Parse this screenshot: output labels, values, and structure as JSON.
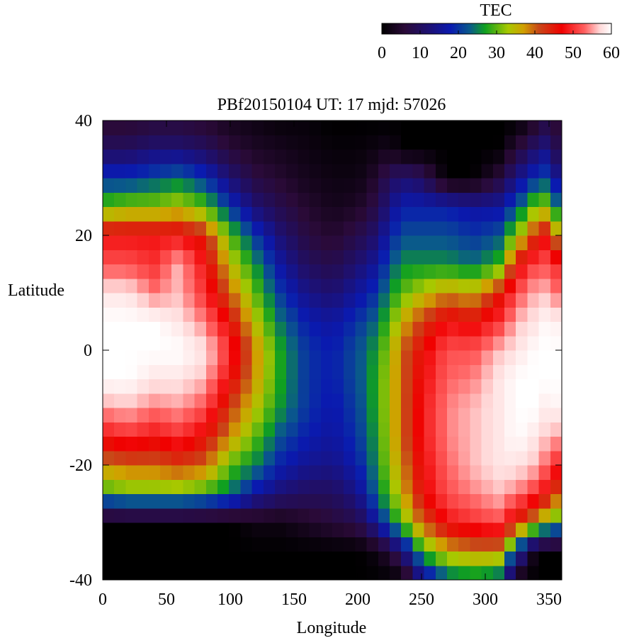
{
  "chart_data": {
    "type": "heatmap",
    "title": "PBf20150104  UT: 17  mjd: 57026",
    "xlabel": "Longitude",
    "ylabel": "Latitude",
    "xlim": [
      0,
      360
    ],
    "ylim": [
      -40,
      40
    ],
    "xticks": [
      "0",
      "50",
      "100",
      "150",
      "200",
      "250",
      "300",
      "350"
    ],
    "yticks": [
      "40",
      "20",
      "0",
      "-20",
      "-40"
    ],
    "colorbar": {
      "label": "TEC",
      "range": [
        0,
        60
      ],
      "ticks": [
        "0",
        "10",
        "20",
        "30",
        "40",
        "50",
        "60"
      ],
      "colors": [
        {
          "v": 0,
          "color": "#000000"
        },
        {
          "v": 6,
          "color": "#2a0a38"
        },
        {
          "v": 12,
          "color": "#1e1070"
        },
        {
          "v": 18,
          "color": "#0a1ab0"
        },
        {
          "v": 23,
          "color": "#0a5a8a"
        },
        {
          "v": 27,
          "color": "#10a020"
        },
        {
          "v": 33,
          "color": "#a8c800"
        },
        {
          "v": 37,
          "color": "#d0a000"
        },
        {
          "v": 41,
          "color": "#c84818"
        },
        {
          "v": 47,
          "color": "#f00000"
        },
        {
          "v": 53,
          "color": "#ff6060"
        },
        {
          "v": 57,
          "color": "#ffd8d8"
        },
        {
          "v": 60,
          "color": "#ffffff"
        }
      ]
    },
    "grid_step": {
      "lon": 9,
      "lat": 2.5
    },
    "profile_longitudes": [
      0,
      20,
      40,
      60,
      80,
      100,
      120,
      140,
      160,
      180,
      200,
      215,
      225,
      235,
      250,
      270,
      290,
      310,
      325,
      340,
      350,
      360
    ],
    "profile_latitudes": [
      -40,
      -35,
      -30,
      -25,
      -20,
      -15,
      -10,
      -5,
      0,
      5,
      10,
      15,
      20,
      25,
      30,
      35,
      40
    ],
    "profiles": [
      [
        0,
        0,
        0,
        28,
        38,
        48,
        55,
        60,
        60,
        60,
        58,
        52,
        48,
        30,
        20,
        10,
        5
      ],
      [
        0,
        0,
        0,
        30,
        40,
        50,
        56,
        60,
        60,
        60,
        58,
        52,
        48,
        32,
        20,
        10,
        5
      ],
      [
        0,
        0,
        0,
        30,
        40,
        48,
        54,
        58,
        60,
        60,
        54,
        50,
        48,
        32,
        22,
        12,
        6
      ],
      [
        0,
        0,
        0,
        30,
        42,
        50,
        55,
        58,
        60,
        58,
        56,
        56,
        48,
        34,
        24,
        12,
        6
      ],
      [
        0,
        0,
        0,
        28,
        40,
        46,
        52,
        56,
        58,
        54,
        50,
        48,
        44,
        30,
        20,
        10,
        5
      ],
      [
        0,
        0,
        0,
        24,
        30,
        38,
        42,
        47,
        50,
        46,
        40,
        35,
        30,
        20,
        12,
        6,
        3
      ],
      [
        0,
        0,
        2,
        16,
        25,
        30,
        34,
        37,
        38,
        34,
        30,
        26,
        20,
        12,
        7,
        4,
        2
      ],
      [
        0,
        0,
        2,
        12,
        18,
        22,
        26,
        27,
        27,
        24,
        20,
        16,
        12,
        8,
        5,
        3,
        1
      ],
      [
        0,
        0,
        4,
        10,
        15,
        18,
        20,
        20,
        20,
        18,
        14,
        10,
        7,
        5,
        3,
        2,
        1
      ],
      [
        0,
        0,
        6,
        10,
        14,
        16,
        17,
        18,
        18,
        16,
        12,
        8,
        5,
        3,
        2,
        1,
        0
      ],
      [
        0,
        0,
        8,
        14,
        18,
        20,
        21,
        22,
        22,
        20,
        16,
        12,
        8,
        4,
        2,
        1,
        0
      ],
      [
        0,
        2,
        16,
        24,
        26,
        27,
        28,
        28,
        27,
        24,
        20,
        16,
        12,
        8,
        5,
        2,
        0
      ],
      [
        0,
        6,
        24,
        30,
        33,
        34,
        34,
        34,
        33,
        30,
        26,
        22,
        18,
        14,
        10,
        3,
        0
      ],
      [
        0,
        12,
        30,
        36,
        38,
        40,
        40,
        40,
        40,
        36,
        30,
        26,
        22,
        18,
        12,
        0,
        0
      ],
      [
        12,
        28,
        40,
        46,
        47,
        48,
        48,
        47,
        46,
        42,
        34,
        26,
        22,
        18,
        10,
        0,
        0
      ],
      [
        22,
        36,
        48,
        52,
        53,
        54,
        54,
        53,
        52,
        48,
        38,
        26,
        22,
        18,
        0,
        0,
        0
      ],
      [
        24,
        38,
        50,
        54,
        56,
        56,
        56,
        54,
        52,
        46,
        36,
        24,
        20,
        16,
        0,
        0,
        0
      ],
      [
        22,
        38,
        52,
        56,
        58,
        58,
        58,
        58,
        56,
        50,
        44,
        28,
        22,
        16,
        6,
        0,
        0
      ],
      [
        0,
        20,
        44,
        54,
        58,
        60,
        60,
        60,
        58,
        56,
        52,
        46,
        32,
        22,
        14,
        6,
        0
      ],
      [
        0,
        0,
        36,
        50,
        56,
        58,
        60,
        60,
        60,
        58,
        56,
        52,
        44,
        32,
        20,
        12,
        4
      ],
      [
        0,
        0,
        30,
        46,
        52,
        56,
        58,
        60,
        60,
        60,
        56,
        52,
        48,
        32,
        22,
        14,
        8
      ],
      [
        0,
        0,
        28,
        38,
        48,
        55,
        60,
        60,
        60,
        58,
        52,
        48,
        30,
        20,
        10,
        5,
        3
      ]
    ]
  }
}
